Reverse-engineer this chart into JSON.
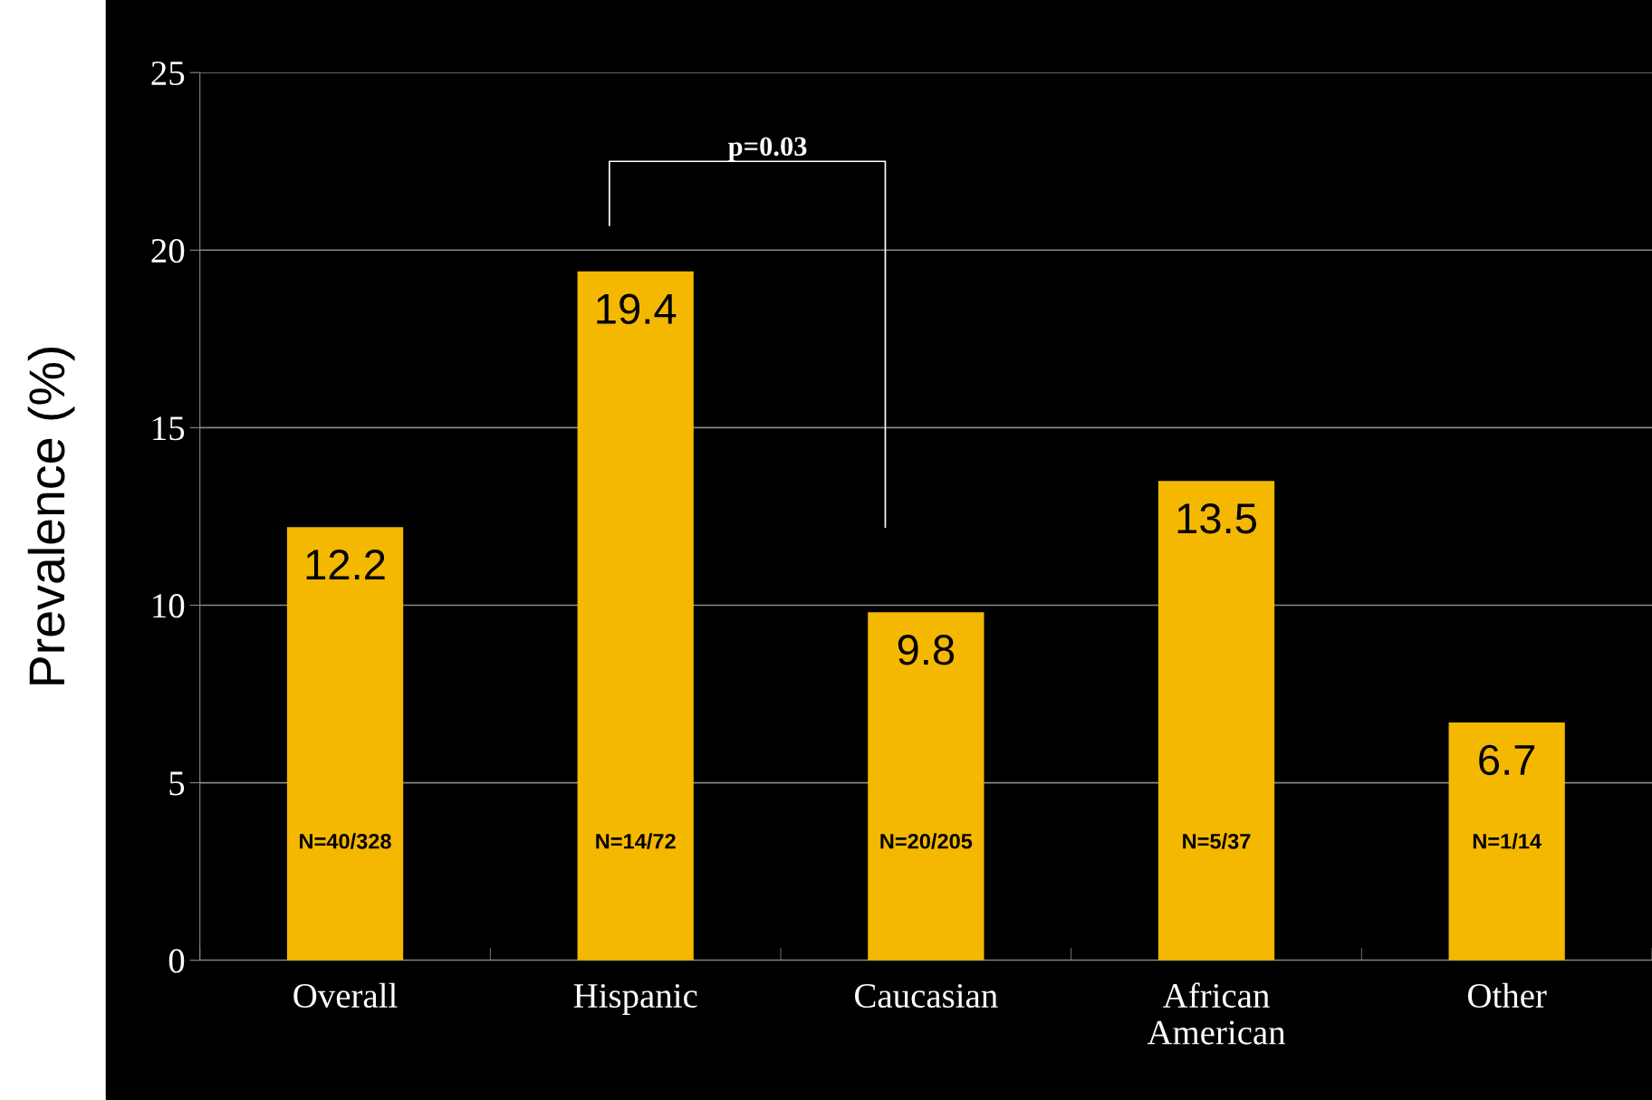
{
  "chart_data": {
    "type": "bar",
    "ylabel": "Prevalence (%)",
    "categories": [
      "Overall",
      "Hispanic",
      "Caucasian",
      "African\nAmerican",
      "Other"
    ],
    "values": [
      12.2,
      19.4,
      9.8,
      13.5,
      6.7
    ],
    "color": "#f5b800",
    "ylim": [
      0,
      25
    ],
    "yticks": [
      0,
      5,
      10,
      15,
      20,
      25
    ],
    "grid": "y",
    "data_labels": true,
    "annotations": [
      "N=40/328",
      "N=14/72",
      "N=20/205",
      "N=5/37",
      "N=1/14",
      "p=0.03"
    ]
  }
}
